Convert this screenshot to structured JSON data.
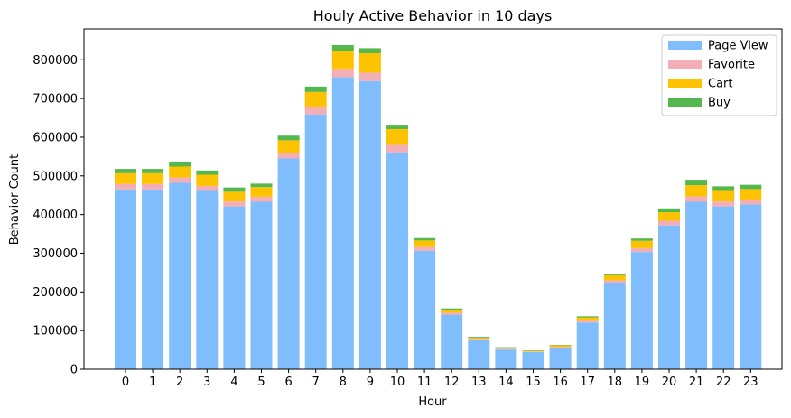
{
  "chart_data": {
    "type": "bar",
    "stacked": true,
    "title": "Houly Active Behavior in 10 days",
    "xlabel": "Hour",
    "ylabel": "Behavior Count",
    "ylim": [
      0,
      880000
    ],
    "yticks": [
      0,
      100000,
      200000,
      300000,
      400000,
      500000,
      600000,
      700000,
      800000
    ],
    "categories": [
      "0",
      "1",
      "2",
      "3",
      "4",
      "5",
      "6",
      "7",
      "8",
      "9",
      "10",
      "11",
      "12",
      "13",
      "14",
      "15",
      "16",
      "17",
      "18",
      "19",
      "20",
      "21",
      "22",
      "23"
    ],
    "legend_position": "top-right",
    "grid": false,
    "series": [
      {
        "name": "Page View",
        "color": "#80bdfc",
        "values": [
          465000,
          465000,
          482000,
          461000,
          421000,
          433000,
          545000,
          659000,
          755000,
          745000,
          561000,
          306000,
          141000,
          75000,
          51000,
          45000,
          56000,
          121000,
          223000,
          303000,
          372000,
          433000,
          421000,
          426000
        ]
      },
      {
        "name": "Favorite",
        "color": "#f4aeb6",
        "values": [
          14000,
          14000,
          14000,
          13000,
          13000,
          13000,
          15000,
          18000,
          22000,
          22000,
          19000,
          10000,
          5000,
          2000,
          2000,
          1000,
          2000,
          4000,
          7000,
          10000,
          12000,
          14000,
          13000,
          13000
        ]
      },
      {
        "name": "Cart",
        "color": "#fdc300",
        "values": [
          28000,
          28000,
          28000,
          29000,
          25000,
          25000,
          32000,
          40000,
          46000,
          50000,
          41000,
          17000,
          8000,
          5000,
          3000,
          2000,
          4000,
          9000,
          13000,
          19000,
          22000,
          29000,
          27000,
          27000
        ]
      },
      {
        "name": "Buy",
        "color": "#55b84e",
        "values": [
          11000,
          11000,
          13000,
          11000,
          11000,
          9000,
          12000,
          14000,
          15000,
          13000,
          9000,
          6000,
          3000,
          2000,
          1000,
          1000,
          1000,
          3000,
          4000,
          6000,
          10000,
          14000,
          12000,
          11000
        ]
      }
    ]
  }
}
